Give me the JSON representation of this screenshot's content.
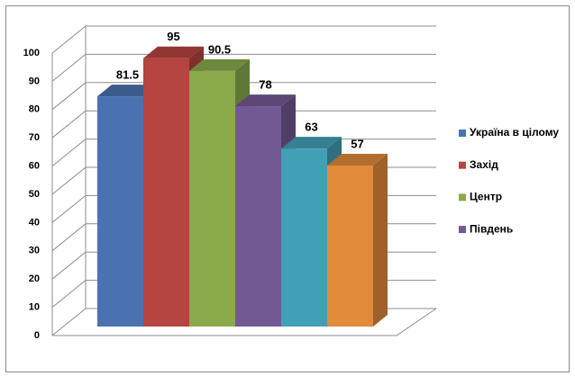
{
  "chart_data": {
    "type": "bar3d",
    "series": [
      {
        "name": "Україна в цілому",
        "color": "#4a72b0",
        "values": [
          81.5
        ]
      },
      {
        "name": "Захід",
        "color": "#b64440",
        "values": [
          95
        ]
      },
      {
        "name": "Центр",
        "color": "#8aaa4c",
        "values": [
          90.5
        ]
      },
      {
        "name": "Південь",
        "color": "#735994",
        "values": [
          78
        ]
      },
      {
        "color": "#42a0b6",
        "values": [
          63
        ]
      },
      {
        "color": "#e08a3a",
        "values": [
          57
        ]
      }
    ],
    "ylim": [
      0,
      100
    ],
    "yticks": [
      0,
      10,
      20,
      30,
      40,
      50,
      60,
      70,
      80,
      90,
      100
    ],
    "grid": true,
    "legend": "right"
  }
}
